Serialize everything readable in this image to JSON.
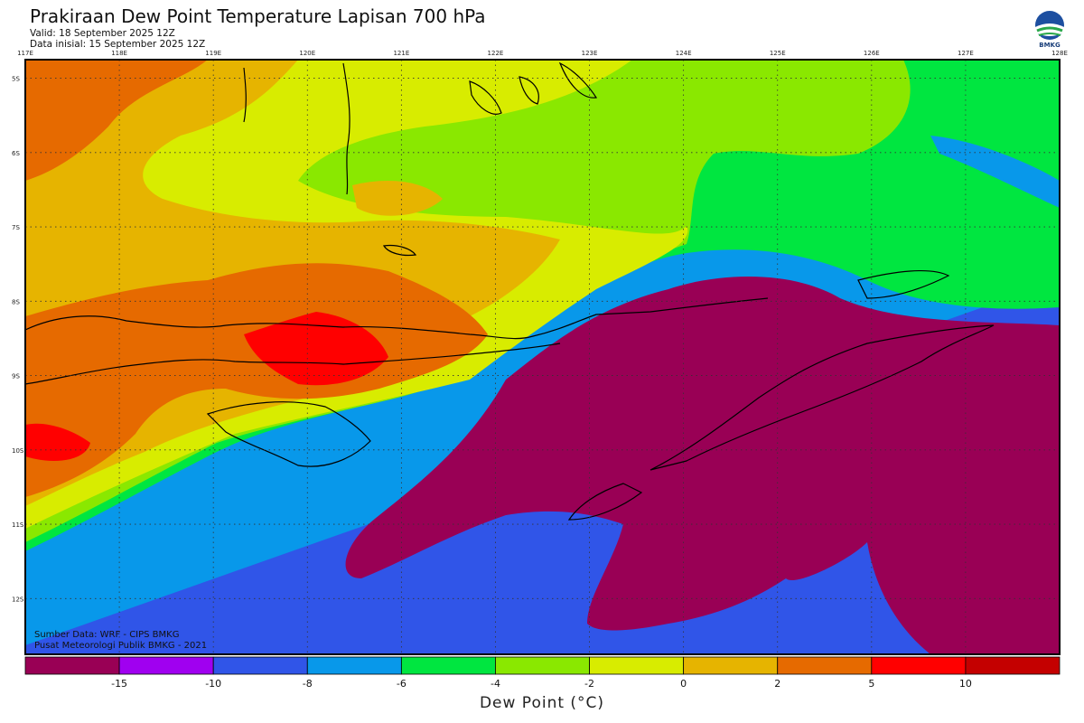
{
  "header": {
    "title": "Prakiraan Dew Point Temperature Lapisan 700 hPa",
    "valid": "Valid: 18 September 2025 12Z",
    "init": "Data inisial: 15 September 2025 12Z"
  },
  "logo": {
    "text": "BMKG",
    "icon": "bmkg-logo-icon"
  },
  "map": {
    "lon_labels": [
      "117E",
      "118E",
      "119E",
      "120E",
      "121E",
      "122E",
      "123E",
      "124E",
      "125E",
      "126E",
      "127E",
      "128E"
    ],
    "lat_labels": [
      "5S",
      "6S",
      "7S",
      "8S",
      "9S",
      "10S",
      "11S",
      "12S"
    ],
    "lon_range": [
      117,
      128
    ],
    "lat_range": [
      -4.75,
      -12.75
    ],
    "grid": "dotted"
  },
  "credits": {
    "source": "Sumber Data: WRF - CIPS BMKG",
    "org": "Pusat Meteorologi Publik BMKG - 2021"
  },
  "colorbar": {
    "title": "Dew Point (°C)",
    "labels": [
      "-15",
      "-10",
      "-8",
      "-6",
      "-4",
      "-2",
      "0",
      "2",
      "5",
      "10"
    ],
    "colors": [
      "#990055",
      "#a000f0",
      "#3055e8",
      "#0898ea",
      "#00e640",
      "#8ae800",
      "#d8ec00",
      "#e6b400",
      "#e66a00",
      "#ff0000",
      "#c40000"
    ]
  },
  "palette": {
    "lt_neg15": "#990055",
    "neg15_neg10": "#a000f0",
    "neg10_neg8": "#3055e8",
    "neg8_neg6": "#0898ea",
    "neg6_neg4": "#00e640",
    "neg4_neg2": "#8ae800",
    "neg2_0": "#d8ec00",
    "zero_2": "#e6b400",
    "two_5": "#e66a00",
    "five_10": "#ff0000",
    "gt_10": "#c40000"
  }
}
